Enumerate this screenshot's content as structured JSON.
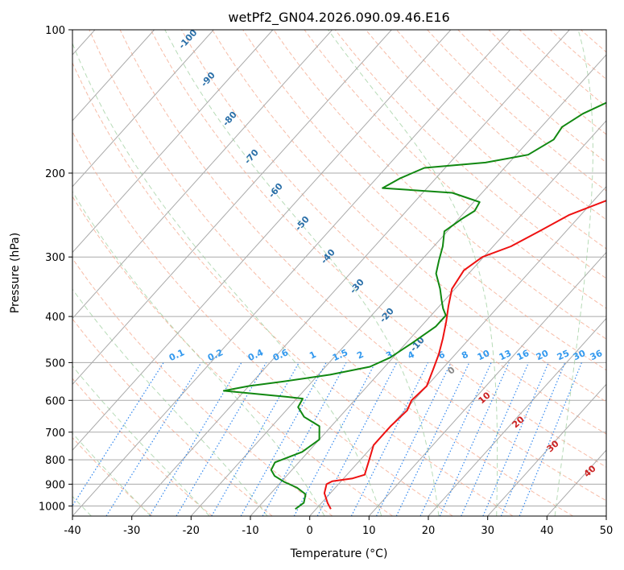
{
  "chart_data": {
    "type": "line",
    "title": "wetPf2_GN04.2026.090.09.46.E16",
    "xlabel": "Temperature (°C)",
    "ylabel": "Pressure (hPa)",
    "xlim": [
      -40,
      50
    ],
    "ylim": [
      1050,
      100
    ],
    "x_ticks": [
      -40,
      -30,
      -20,
      -10,
      0,
      10,
      20,
      30,
      40,
      50
    ],
    "y_ticks": [
      100,
      200,
      300,
      400,
      500,
      600,
      700,
      800,
      900,
      1000
    ],
    "colors": {
      "temperature": "#ee1111",
      "dewpoint": "#118811",
      "isotherm": "#aaaaaa",
      "dry_adiabat": "#f4a58a",
      "moist_adiabat": "#99cc99",
      "mixing_ratio": "#3388ee",
      "isotherm_label": "#2a6fa8",
      "mixing_label": "#3399ee",
      "moist_label_warm": "#cc2222",
      "moist_label_zero": "#888888"
    },
    "series": [
      {
        "name": "Temperature",
        "points": [
          [
            2.5,
            1015
          ],
          [
            1.0,
            985
          ],
          [
            -1.0,
            940
          ],
          [
            -2.0,
            900
          ],
          [
            -1.5,
            887
          ],
          [
            1.5,
            875
          ],
          [
            3.0,
            860
          ],
          [
            2.5,
            840
          ],
          [
            1.5,
            800
          ],
          [
            0.0,
            745
          ],
          [
            0.0,
            700
          ],
          [
            0.0,
            680
          ],
          [
            0.4,
            630
          ],
          [
            -0.4,
            600
          ],
          [
            0.0,
            560
          ],
          [
            -1.5,
            515
          ],
          [
            -2.8,
            480
          ],
          [
            -4.5,
            445
          ],
          [
            -6.5,
            410
          ],
          [
            -8.5,
            380
          ],
          [
            -10.5,
            350
          ],
          [
            -11.3,
            320
          ],
          [
            -10.2,
            300
          ],
          [
            -7.0,
            285
          ],
          [
            -4.5,
            265
          ],
          [
            -2.0,
            245
          ],
          [
            3.0,
            225
          ],
          [
            7.0,
            205
          ],
          [
            10.0,
            185
          ],
          [
            12.5,
            167
          ],
          [
            15.5,
            152
          ],
          [
            17.5,
            142
          ],
          [
            19.0,
            130
          ],
          [
            22.0,
            118
          ],
          [
            25.5,
            110
          ],
          [
            29.0,
            100
          ]
        ]
      },
      {
        "name": "Dewpoint",
        "points": [
          [
            -3.5,
            1015
          ],
          [
            -3.0,
            985
          ],
          [
            -4.0,
            945
          ],
          [
            -6.5,
            915
          ],
          [
            -9.5,
            890
          ],
          [
            -12.0,
            865
          ],
          [
            -13.5,
            840
          ],
          [
            -14.0,
            810
          ],
          [
            -11.0,
            770
          ],
          [
            -10.0,
            725
          ],
          [
            -12.0,
            680
          ],
          [
            -16.0,
            650
          ],
          [
            -18.5,
            620
          ],
          [
            -19.0,
            595
          ],
          [
            -22.0,
            590
          ],
          [
            -33.5,
            573
          ],
          [
            -30.0,
            560
          ],
          [
            -25.0,
            548
          ],
          [
            -18.0,
            530
          ],
          [
            -12.5,
            510
          ],
          [
            -10.5,
            488
          ],
          [
            -9.0,
            455
          ],
          [
            -7.5,
            420
          ],
          [
            -7.5,
            398
          ],
          [
            -9.0,
            385
          ],
          [
            -10.5,
            370
          ],
          [
            -12.5,
            350
          ],
          [
            -15.5,
            325
          ],
          [
            -17.0,
            305
          ],
          [
            -18.5,
            285
          ],
          [
            -20.5,
            265
          ],
          [
            -19.5,
            250
          ],
          [
            -18.5,
            240
          ],
          [
            -19.0,
            230
          ],
          [
            -25.0,
            220
          ],
          [
            -37.5,
            215
          ],
          [
            -36.0,
            205
          ],
          [
            -33.5,
            195
          ],
          [
            -24.0,
            190
          ],
          [
            -18.0,
            183
          ],
          [
            -16.0,
            170
          ],
          [
            -16.5,
            160
          ],
          [
            -15.0,
            150
          ],
          [
            -12.0,
            140
          ],
          [
            -9.5,
            125
          ],
          [
            -7.0,
            115
          ],
          [
            -3.5,
            100
          ]
        ]
      }
    ],
    "isotherm_labels": [
      "-100",
      "-90",
      "-80",
      "-70",
      "-60",
      "-50",
      "-40",
      "-30",
      "-20",
      "-10"
    ],
    "mixing_ratio_labels": [
      "0.1",
      "0.2",
      "0.4",
      "0.6",
      "1",
      "1.5",
      "2",
      "3",
      "4",
      "6",
      "8",
      "10",
      "13",
      "16",
      "20",
      "25",
      "30",
      "36"
    ],
    "moist_adiabat_labels": [
      "0",
      "10",
      "20",
      "30",
      "40"
    ]
  }
}
